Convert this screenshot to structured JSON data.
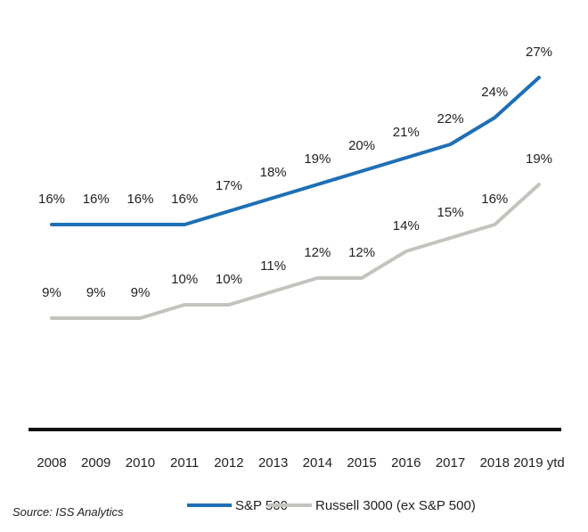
{
  "chart_data": {
    "type": "line",
    "categories": [
      "2008",
      "2009",
      "2010",
      "2011",
      "2012",
      "2013",
      "2014",
      "2015",
      "2016",
      "2017",
      "2018",
      "2019 ytd"
    ],
    "series": [
      {
        "name": "S&P 500",
        "color": "#1f6fb5",
        "values": [
          16,
          16,
          16,
          16,
          17,
          18,
          19,
          20,
          21,
          22,
          24,
          27
        ],
        "labels": [
          "16%",
          "16%",
          "16%",
          "16%",
          "17%",
          "18%",
          "19%",
          "20%",
          "21%",
          "22%",
          "24%",
          "27%"
        ]
      },
      {
        "name": "Russell 3000 (ex S&P 500)",
        "color": "#c4c4bf",
        "values": [
          9,
          9,
          9,
          10,
          10,
          11,
          12,
          12,
          14,
          15,
          16,
          19
        ],
        "labels": [
          "9%",
          "9%",
          "9%",
          "10%",
          "10%",
          "11%",
          "12%",
          "12%",
          "14%",
          "15%",
          "16%",
          "19%"
        ]
      }
    ],
    "legend_position": "bottom",
    "grid": false
  },
  "source": "Source: ISS Analytics"
}
